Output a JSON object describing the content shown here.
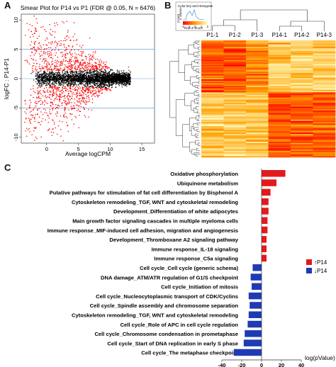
{
  "panels": {
    "a": {
      "letter": "A"
    },
    "b": {
      "letter": "B"
    },
    "c": {
      "letter": "C"
    }
  },
  "chart_data": [
    {
      "type": "scatter",
      "title": "Smear Plot for P14 vs P1 (FDR @ 0.05, N = 6476)",
      "xlabel": "Average logCPM",
      "ylabel": "logFC : P14-P1",
      "x_ticks": [
        0,
        5,
        10,
        15
      ],
      "y_ticks": [
        -10,
        -5,
        0,
        5,
        10
      ],
      "xlim": [
        -4,
        17
      ],
      "ylim": [
        -11,
        11
      ],
      "hlines": [
        -5,
        5
      ],
      "colors": {
        "significant": "#ff0000",
        "not_significant": "#000000",
        "reference": "#6fa0d8"
      },
      "significant_count": 6476
    },
    {
      "type": "heatmap",
      "legend_title": "Color key and Histogram",
      "legend_y_label": "Count",
      "legend_x_label": "Row Z-Score",
      "legend_scale_ticks": [
        "-2",
        "-1",
        "0",
        "1",
        "2"
      ],
      "legend_count_ticks": [
        "0",
        "400",
        "1000"
      ],
      "columns": [
        "P1-1",
        "P1-2",
        "P1-3",
        "P14-1",
        "P14-2",
        "P14-3"
      ],
      "colors": {
        "low": "#ff0000",
        "mid": "#ff9900",
        "high": "#ffffc0"
      }
    },
    {
      "type": "bar",
      "orientation": "horizontal",
      "categories": [
        "Oxidative phosphorylation",
        "Ubiquinone metabolism",
        "Putative pathways for stimulation of fat cell differentiation by Bisphenol A",
        "Cytoskeleton remodeling_TGF, WNT and cytoskeletal remodeling",
        "Development_Differentiation of white adipocytes",
        "Main growth factor signaling cascades in multiple myeloma cells",
        "Immune response_MIF-induced cell adhesion, migration and angiogenesis",
        "Development_Thromboxane A2 signaling pathway",
        "Immune response_IL-18 signaling",
        "Immune response_C5a signaling",
        "Cell cycle_Cell cycle (generic schema)",
        "DNA damage_ATM/ATR regulation of G1/S checkpoint",
        "Cell cycle_Initiation of mitosis",
        "Cell cycle_Nucleocytoplasmic transport of CDK/Cyclins",
        "Cell cycle_Spindle assembly and chromosome separation",
        "Cytoskeleton remodeling_TGF, WNT and cytoskeletal remodeling",
        "Cell cycle_Role of APC in cell cycle regulation",
        "Cell cycle_Chromosome condensation in prometaphase",
        "Cell cycle_Start of DNA replication in early S phase",
        "Cell cycle_The metaphase checkpoint"
      ],
      "values": [
        24,
        15,
        9,
        7,
        7,
        6,
        6,
        5,
        5,
        5,
        -9,
        -11,
        -10,
        -13,
        -12,
        -13,
        -14,
        -17,
        -18,
        -28
      ],
      "series": [
        {
          "name": "↑P14",
          "color": "#e31a1c"
        },
        {
          "name": "↓P14",
          "color": "#1f3bb3"
        }
      ],
      "xlabel": "log(pValue)",
      "x_ticks": [
        "-40",
        "-20",
        "0",
        "20",
        "40"
      ],
      "xlim": [
        -40,
        40
      ]
    }
  ]
}
